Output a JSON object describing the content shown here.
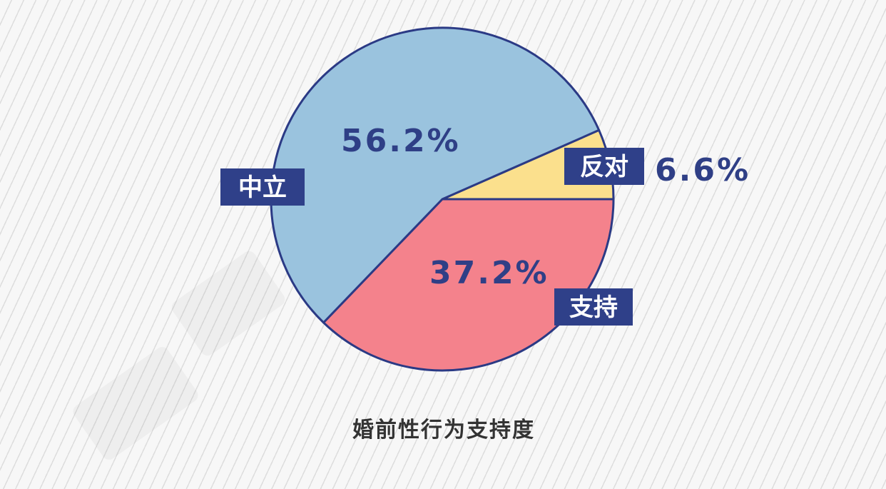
{
  "chart_data": {
    "type": "pie",
    "title": "婚前性行为支持度",
    "slices": [
      {
        "label": "反对",
        "value": 6.6,
        "value_label": "6.6%",
        "color": "#fbe08d"
      },
      {
        "label": "支持",
        "value": 37.2,
        "value_label": "37.2%",
        "color": "#f4828c"
      },
      {
        "label": "中立",
        "value": 56.2,
        "value_label": "56.2%",
        "color": "#9ac3de"
      }
    ],
    "outline_color": "#2b3a85",
    "label_color": "#2f3f86",
    "tag_background": "#2f4089"
  }
}
